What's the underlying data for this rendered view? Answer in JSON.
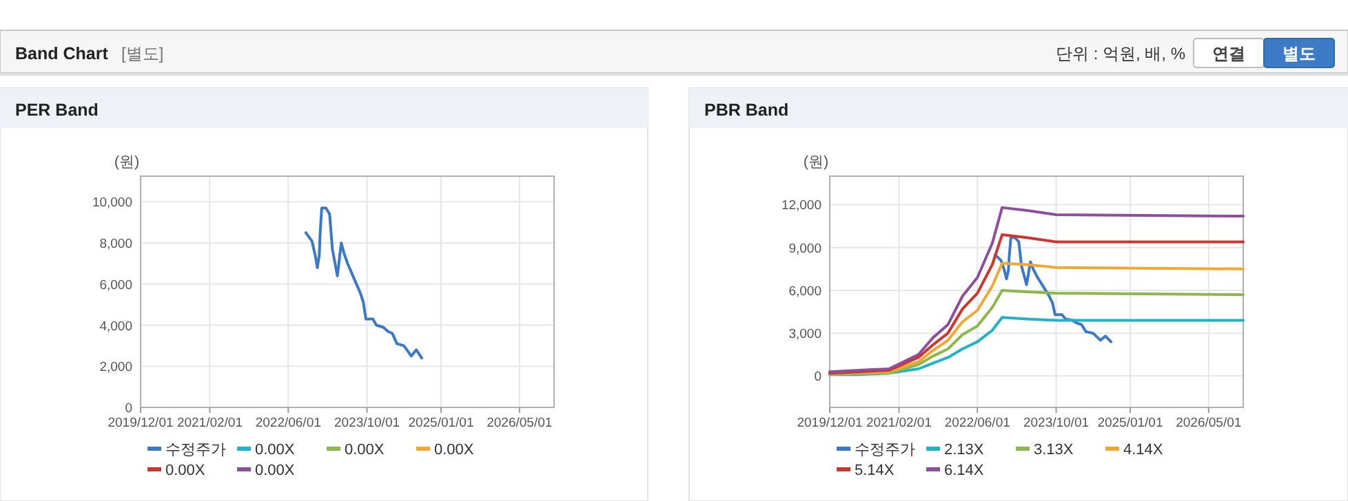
{
  "chart_data": [
    {
      "type": "other",
      "title": "Band Chart",
      "subtitle": "[별도]",
      "annotations": [
        "단위 : 억원, 배, %",
        "연결",
        "별도"
      ]
    },
    {
      "type": "line",
      "title": "PER Band",
      "ylabel": "(원)",
      "xlim": [
        "2019-12-01",
        "2026-12-01"
      ],
      "xticks": [
        {
          "value": "2019-12-01",
          "label": "2019/12/01"
        },
        {
          "value": "2021-02-01",
          "label": "2021/02/01"
        },
        {
          "value": "2022-06-01",
          "label": "2022/06/01"
        },
        {
          "value": "2023-10-01",
          "label": "2023/10/01"
        },
        {
          "value": "2025-01-01",
          "label": "2025/01/01"
        },
        {
          "value": "2026-05-01",
          "label": "2026/05/01"
        }
      ],
      "ylim": [
        0,
        11250
      ],
      "yticks": [
        0,
        {
          "value": 2000,
          "label": "2,000"
        },
        {
          "value": 4000,
          "label": "4,000"
        },
        {
          "value": 6000,
          "label": "6,000"
        },
        {
          "value": 8000,
          "label": "8,000"
        },
        {
          "value": 10000,
          "label": "10,000"
        }
      ],
      "grid": true,
      "legend": "bottom",
      "marker": "none",
      "line_style": "solid",
      "series": [
        {
          "name": "수정주가",
          "color": "#3a78c8",
          "x": [
            "2022-09-18",
            "2022-10-25",
            "2022-11-15",
            "2022-11-28",
            "2022-12-10",
            "2022-12-15",
            "2022-12-25",
            "2023-01-20",
            "2023-02-12",
            "2023-03-01",
            "2023-04-01",
            "2023-04-07",
            "2023-04-25",
            "2023-05-12",
            "2023-06-03",
            "2023-07-06",
            "2023-08-19",
            "2023-09-09",
            "2023-09-24",
            "2023-10-15",
            "2023-11-06",
            "2023-11-28",
            "2024-01-10",
            "2024-02-07",
            "2024-03-06",
            "2024-04-03",
            "2024-05-16",
            "2024-06-13",
            "2024-07-01",
            "2024-08-01",
            "2024-09-04"
          ],
          "values": [
            8500,
            8100,
            7400,
            6800,
            7400,
            8400,
            9700,
            9700,
            9400,
            7700,
            6400,
            6800,
            8000,
            7500,
            7000,
            6400,
            5600,
            5100,
            4300,
            4300,
            4300,
            4000,
            3900,
            3700,
            3600,
            3100,
            3000,
            2700,
            2500,
            2800,
            2400
          ]
        },
        {
          "name": "0.00X",
          "color": "#1fb3c8"
        },
        {
          "name": "0.00X",
          "color": "#8cb84a"
        },
        {
          "name": "0.00X",
          "color": "#f0a830"
        },
        {
          "name": "0.00X",
          "color": "#d0342c"
        },
        {
          "name": "0.00X",
          "color": "#8e4e9e"
        }
      ]
    },
    {
      "type": "line",
      "title": "PBR Band",
      "ylabel": "(원)",
      "xlim": [
        "2019-12-01",
        "2026-12-01"
      ],
      "xticks": [
        {
          "value": "2019-12-01",
          "label": "2019/12/01"
        },
        {
          "value": "2021-02-01",
          "label": "2021/02/01"
        },
        {
          "value": "2022-06-01",
          "label": "2022/06/01"
        },
        {
          "value": "2023-10-01",
          "label": "2023/10/01"
        },
        {
          "value": "2025-01-01",
          "label": "2025/01/01"
        },
        {
          "value": "2026-05-01",
          "label": "2026/05/01"
        }
      ],
      "ylim": [
        -2200,
        14000
      ],
      "yticks": [
        0,
        {
          "value": 3000,
          "label": "3,000"
        },
        {
          "value": 6000,
          "label": "6,000"
        },
        {
          "value": 9000,
          "label": "9,000"
        },
        {
          "value": 12000,
          "label": "12,000"
        }
      ],
      "grid": true,
      "legend": "bottom",
      "marker": "none",
      "line_style": "solid",
      "series": [
        {
          "name": "수정주가",
          "color": "#3a78c8",
          "x": [
            "2022-09-18",
            "2022-10-25",
            "2022-11-15",
            "2022-11-28",
            "2022-12-10",
            "2022-12-15",
            "2022-12-25",
            "2023-01-20",
            "2023-02-12",
            "2023-03-01",
            "2023-04-01",
            "2023-04-07",
            "2023-04-25",
            "2023-05-12",
            "2023-06-03",
            "2023-07-06",
            "2023-08-19",
            "2023-09-09",
            "2023-09-24",
            "2023-10-15",
            "2023-11-06",
            "2023-11-28",
            "2024-01-10",
            "2024-02-07",
            "2024-03-06",
            "2024-04-03",
            "2024-05-16",
            "2024-06-13",
            "2024-07-01",
            "2024-08-01",
            "2024-09-04"
          ],
          "values": [
            8500,
            8100,
            7400,
            6800,
            7400,
            8400,
            9700,
            9700,
            9400,
            7700,
            6400,
            6800,
            8000,
            7500,
            7000,
            6400,
            5600,
            5100,
            4300,
            4300,
            4300,
            4000,
            3900,
            3700,
            3600,
            3100,
            3000,
            2700,
            2500,
            2800,
            2400
          ]
        },
        {
          "name": "2.13X",
          "color": "#1fb3c8",
          "x": [
            "2019-12-01",
            "2020-06-01",
            "2020-12-01",
            "2021-06-01",
            "2021-09-01",
            "2021-12-01",
            "2022-03-01",
            "2022-06-01",
            "2022-09-01",
            "2022-11-01",
            "2023-04-01",
            "2023-10-01",
            "2026-12-01"
          ],
          "values": [
            100,
            100,
            200,
            500,
            900,
            1300,
            1900,
            2400,
            3200,
            4100,
            4000,
            3900,
            3900
          ]
        },
        {
          "name": "3.13X",
          "color": "#8cb84a",
          "x": [
            "2019-12-01",
            "2020-06-01",
            "2020-12-01",
            "2021-06-01",
            "2021-09-01",
            "2021-12-01",
            "2022-03-01",
            "2022-06-01",
            "2022-09-01",
            "2022-11-01",
            "2023-04-01",
            "2023-10-01",
            "2026-12-01"
          ],
          "values": [
            100,
            200,
            200,
            800,
            1400,
            1900,
            2900,
            3500,
            4800,
            6000,
            5900,
            5800,
            5700
          ]
        },
        {
          "name": "4.14X",
          "color": "#f0a830",
          "x": [
            "2019-12-01",
            "2020-06-01",
            "2020-12-01",
            "2021-06-01",
            "2021-09-01",
            "2021-12-01",
            "2022-03-01",
            "2022-06-01",
            "2022-09-01",
            "2022-11-01",
            "2023-04-01",
            "2023-10-01",
            "2026-12-01"
          ],
          "values": [
            200,
            200,
            300,
            1000,
            1800,
            2500,
            3800,
            4600,
            6300,
            7900,
            7800,
            7600,
            7500
          ]
        },
        {
          "name": "5.14X",
          "color": "#d0342c",
          "x": [
            "2019-12-01",
            "2020-06-01",
            "2020-12-01",
            "2021-06-01",
            "2021-09-01",
            "2021-12-01",
            "2022-03-01",
            "2022-06-01",
            "2022-09-01",
            "2022-11-01",
            "2023-04-01",
            "2023-10-01",
            "2026-12-01"
          ],
          "values": [
            200,
            300,
            400,
            1300,
            2200,
            3000,
            4700,
            5800,
            7800,
            9900,
            9700,
            9400,
            9400
          ]
        },
        {
          "name": "6.14X",
          "color": "#8e4e9e",
          "x": [
            "2019-12-01",
            "2020-06-01",
            "2020-12-01",
            "2021-06-01",
            "2021-09-01",
            "2021-12-01",
            "2022-03-01",
            "2022-06-01",
            "2022-09-01",
            "2022-11-01",
            "2023-04-01",
            "2023-10-01",
            "2026-12-01"
          ],
          "values": [
            300,
            400,
            500,
            1500,
            2700,
            3600,
            5600,
            6900,
            9300,
            11800,
            11600,
            11300,
            11200
          ]
        }
      ]
    }
  ]
}
